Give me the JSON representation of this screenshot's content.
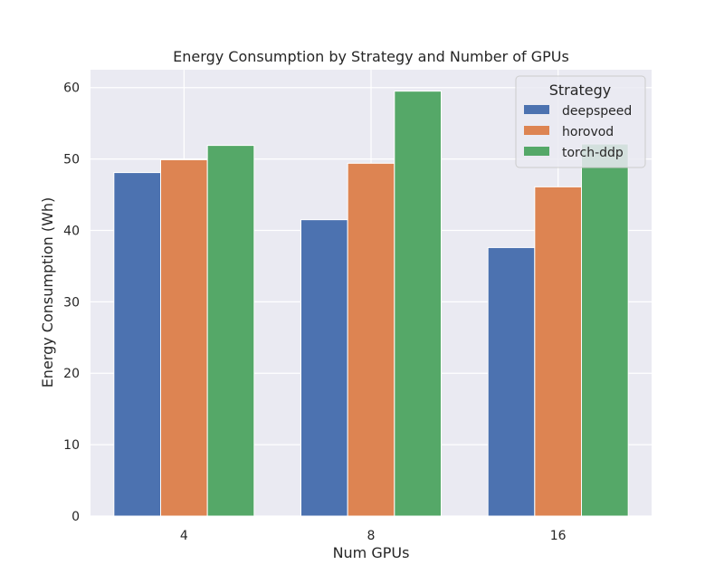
{
  "colors": {
    "background": "#ffffff",
    "plot_background": "#eaeaf2",
    "grid": "#ffffff",
    "legend_background": "#eaeaf2",
    "legend_border": "#cccccc"
  },
  "chart_data": {
    "type": "bar",
    "title": "Energy Consumption by Strategy and Number of GPUs",
    "xlabel": "Num GPUs",
    "ylabel": "Energy Consumption (Wh)",
    "categories": [
      "4",
      "8",
      "16"
    ],
    "ylim": [
      0,
      62.5
    ],
    "yticks": [
      0,
      10,
      20,
      30,
      40,
      50,
      60
    ],
    "grid": true,
    "legend": {
      "title": "Strategy",
      "placement": "top-right"
    },
    "series": [
      {
        "name": "deepspeed",
        "color": "#4c72b0",
        "values": [
          48.1,
          41.5,
          37.6
        ]
      },
      {
        "name": "horovod",
        "color": "#dd8452",
        "values": [
          49.9,
          49.4,
          46.1
        ]
      },
      {
        "name": "torch-ddp",
        "color": "#55a868",
        "values": [
          51.9,
          59.5,
          52.1
        ]
      }
    ]
  }
}
